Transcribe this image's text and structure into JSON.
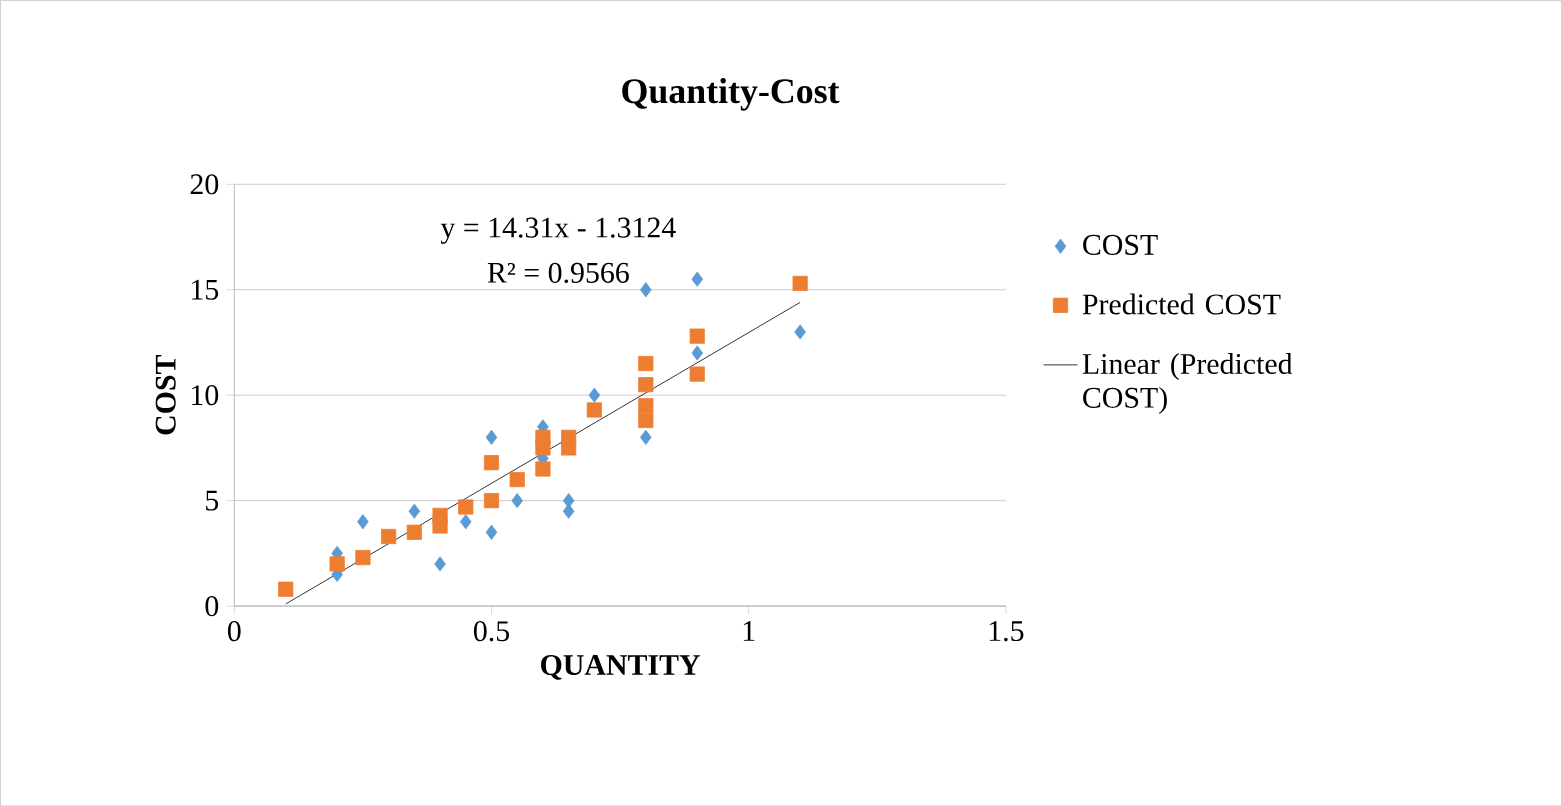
{
  "chart_data": {
    "type": "scatter",
    "title": "Quantity-Cost",
    "xlabel": "QUANTITY",
    "ylabel": "COST",
    "xlim": [
      0,
      1.5
    ],
    "xticks": [
      0,
      0.5,
      1,
      1.5
    ],
    "ylim": [
      0,
      20
    ],
    "yticks": [
      0,
      5,
      10,
      15,
      20
    ],
    "grid": "y",
    "legend": "right",
    "annotations": [
      "y = 14.31x - 1.3124",
      "R² = 0.9566"
    ],
    "series": [
      {
        "name": "COST",
        "color": "#5b9bd5",
        "marker": "diamond",
        "x": [
          0.2,
          0.2,
          0.25,
          0.35,
          0.4,
          0.45,
          0.5,
          0.5,
          0.55,
          0.6,
          0.6,
          0.65,
          0.65,
          0.7,
          0.8,
          0.8,
          0.9,
          0.9,
          1.1
        ],
        "values": [
          2.5,
          1.5,
          4.0,
          4.5,
          2.0,
          4.0,
          3.5,
          8.0,
          5.0,
          8.5,
          7.0,
          5.0,
          4.5,
          10.0,
          15.0,
          8.0,
          15.5,
          12.0,
          13.0
        ]
      },
      {
        "name": "Predicted COST",
        "color": "#ed7d31",
        "marker": "square",
        "x": [
          0.1,
          0.2,
          0.25,
          0.3,
          0.35,
          0.4,
          0.4,
          0.45,
          0.5,
          0.5,
          0.55,
          0.6,
          0.6,
          0.6,
          0.65,
          0.65,
          0.7,
          0.8,
          0.8,
          0.8,
          0.8,
          0.9,
          0.9,
          1.1
        ],
        "values": [
          0.8,
          2.0,
          2.3,
          3.3,
          3.5,
          3.8,
          4.3,
          4.7,
          5.0,
          6.8,
          6.0,
          6.5,
          7.5,
          8.0,
          7.5,
          8.0,
          9.3,
          8.8,
          9.5,
          10.5,
          11.5,
          11.0,
          12.8,
          15.3
        ]
      },
      {
        "name": "Linear (Predicted COST)",
        "type": "line",
        "color": "#000000",
        "marker": "none",
        "line_style": "solid",
        "x": [
          0.1,
          1.1
        ],
        "values": [
          0.1,
          14.4
        ]
      }
    ]
  }
}
